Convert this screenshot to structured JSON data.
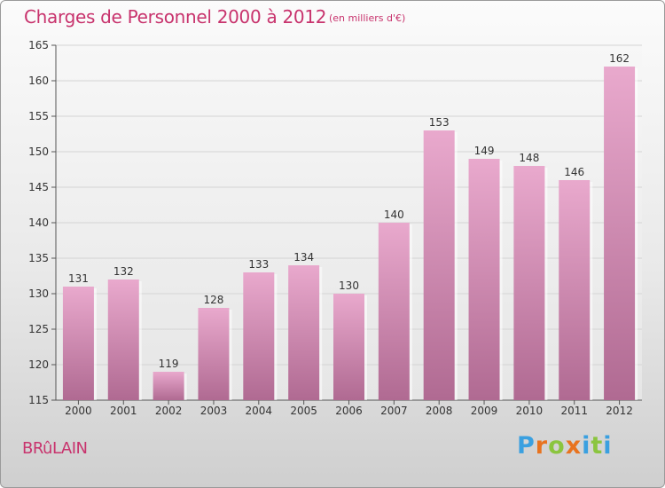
{
  "header": {
    "title": "Charges de Personnel 2000 à 2012",
    "subtitle": "(en milliers d'€)"
  },
  "footer": {
    "place": "BRûLAIN",
    "logo": "Proxiti"
  },
  "colors": {
    "title": "#c8336d",
    "bar_light": "#e9a9cd",
    "bar_dark": "#b06a92",
    "logo_letters": [
      "#3aa0e0",
      "#e8731f",
      "#8bc53f",
      "#e8731f",
      "#3aa0e0",
      "#8bc53f",
      "#3aa0e0"
    ]
  },
  "chart_data": {
    "type": "bar",
    "categories": [
      "2000",
      "2001",
      "2002",
      "2003",
      "2004",
      "2005",
      "2006",
      "2007",
      "2008",
      "2009",
      "2010",
      "2011",
      "2012"
    ],
    "values": [
      131,
      132,
      119,
      128,
      133,
      134,
      130,
      140,
      153,
      149,
      148,
      146,
      162
    ],
    "ylim": [
      115,
      165
    ],
    "yticks": [
      115,
      120,
      125,
      130,
      135,
      140,
      145,
      150,
      155,
      160,
      165
    ],
    "grid": true,
    "data_labels": true
  }
}
